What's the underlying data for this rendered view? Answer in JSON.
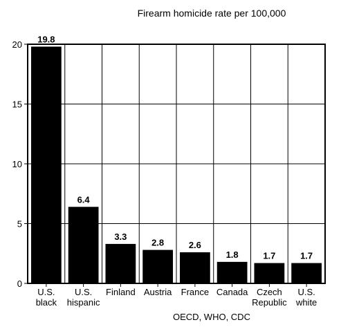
{
  "chart_data": {
    "type": "bar",
    "title": "Firearm homicide rate per 100,000",
    "source": "OECD, WHO, CDC",
    "categories": [
      [
        "U.S.",
        "black"
      ],
      [
        "U.S.",
        "hispanic"
      ],
      [
        "Finland"
      ],
      [
        "Austria"
      ],
      [
        "France"
      ],
      [
        "Canada"
      ],
      [
        "Czech",
        "Republic"
      ],
      [
        "U.S.",
        "white"
      ]
    ],
    "values": [
      19.8,
      6.4,
      3.3,
      2.8,
      2.6,
      1.8,
      1.7,
      1.7
    ],
    "value_labels": [
      "19.8",
      "6.4",
      "3.3",
      "2.8",
      "2.6",
      "1.8",
      "1.7",
      "1.7"
    ],
    "ylim": [
      0,
      20
    ],
    "yticks": [
      0,
      5,
      10,
      15,
      20
    ],
    "grid": true,
    "xlabel": "",
    "ylabel": "",
    "colors": {
      "bar": "#000000",
      "grid": "#000000",
      "background": "#ffffff"
    }
  }
}
